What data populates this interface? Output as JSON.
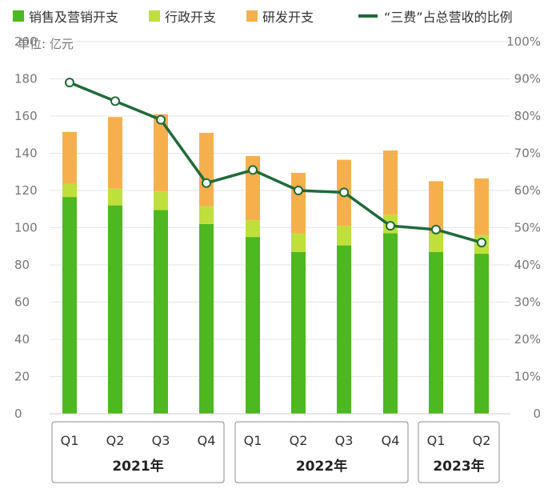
{
  "legend": {
    "sales": "销售及营销开支",
    "admin": "行政开支",
    "rd": "研发开支",
    "ratio": "“三费”占总营收的比例"
  },
  "unit_label": "单位: 亿元",
  "colors": {
    "sales": "#4db81f",
    "admin": "#bfe03a",
    "rd": "#f5b04d",
    "line": "#1f6b3a",
    "grid": "#e6e6e6"
  },
  "chart_data": {
    "type": "bar",
    "categories": [
      "Q1",
      "Q2",
      "Q3",
      "Q4",
      "Q1",
      "Q2",
      "Q3",
      "Q4",
      "Q1",
      "Q2"
    ],
    "groups": [
      {
        "label": "2021年",
        "start": 0,
        "end": 3
      },
      {
        "label": "2022年",
        "start": 4,
        "end": 7
      },
      {
        "label": "2023年",
        "start": 8,
        "end": 9
      }
    ],
    "series": [
      {
        "name": "销售及营销开支",
        "values": [
          116.5,
          112,
          109.5,
          102,
          95,
          87,
          90.5,
          97,
          87,
          86
        ]
      },
      {
        "name": "行政开支",
        "values": [
          7,
          9,
          10,
          9.5,
          9,
          10,
          10.5,
          10,
          10,
          10
        ]
      },
      {
        "name": "研发开支",
        "values": [
          28,
          38.5,
          41.5,
          39.5,
          34.5,
          32.5,
          35.5,
          34.5,
          28,
          30.5
        ]
      }
    ],
    "line_series": {
      "name": "“三费”占总营收的比例",
      "values": [
        89,
        84,
        79,
        62,
        65.5,
        60,
        59.5,
        50.5,
        49.5,
        46
      ]
    },
    "ylim": [
      0,
      200
    ],
    "yticks": [
      0,
      20,
      40,
      60,
      80,
      100,
      120,
      140,
      160,
      180,
      200
    ],
    "y2lim": [
      0,
      100
    ],
    "y2ticks": [
      "0",
      "10%",
      "20%",
      "30%",
      "40%",
      "50%",
      "60%",
      "70%",
      "80%",
      "90%",
      "100%"
    ],
    "grid": true,
    "legend_position": "top"
  }
}
